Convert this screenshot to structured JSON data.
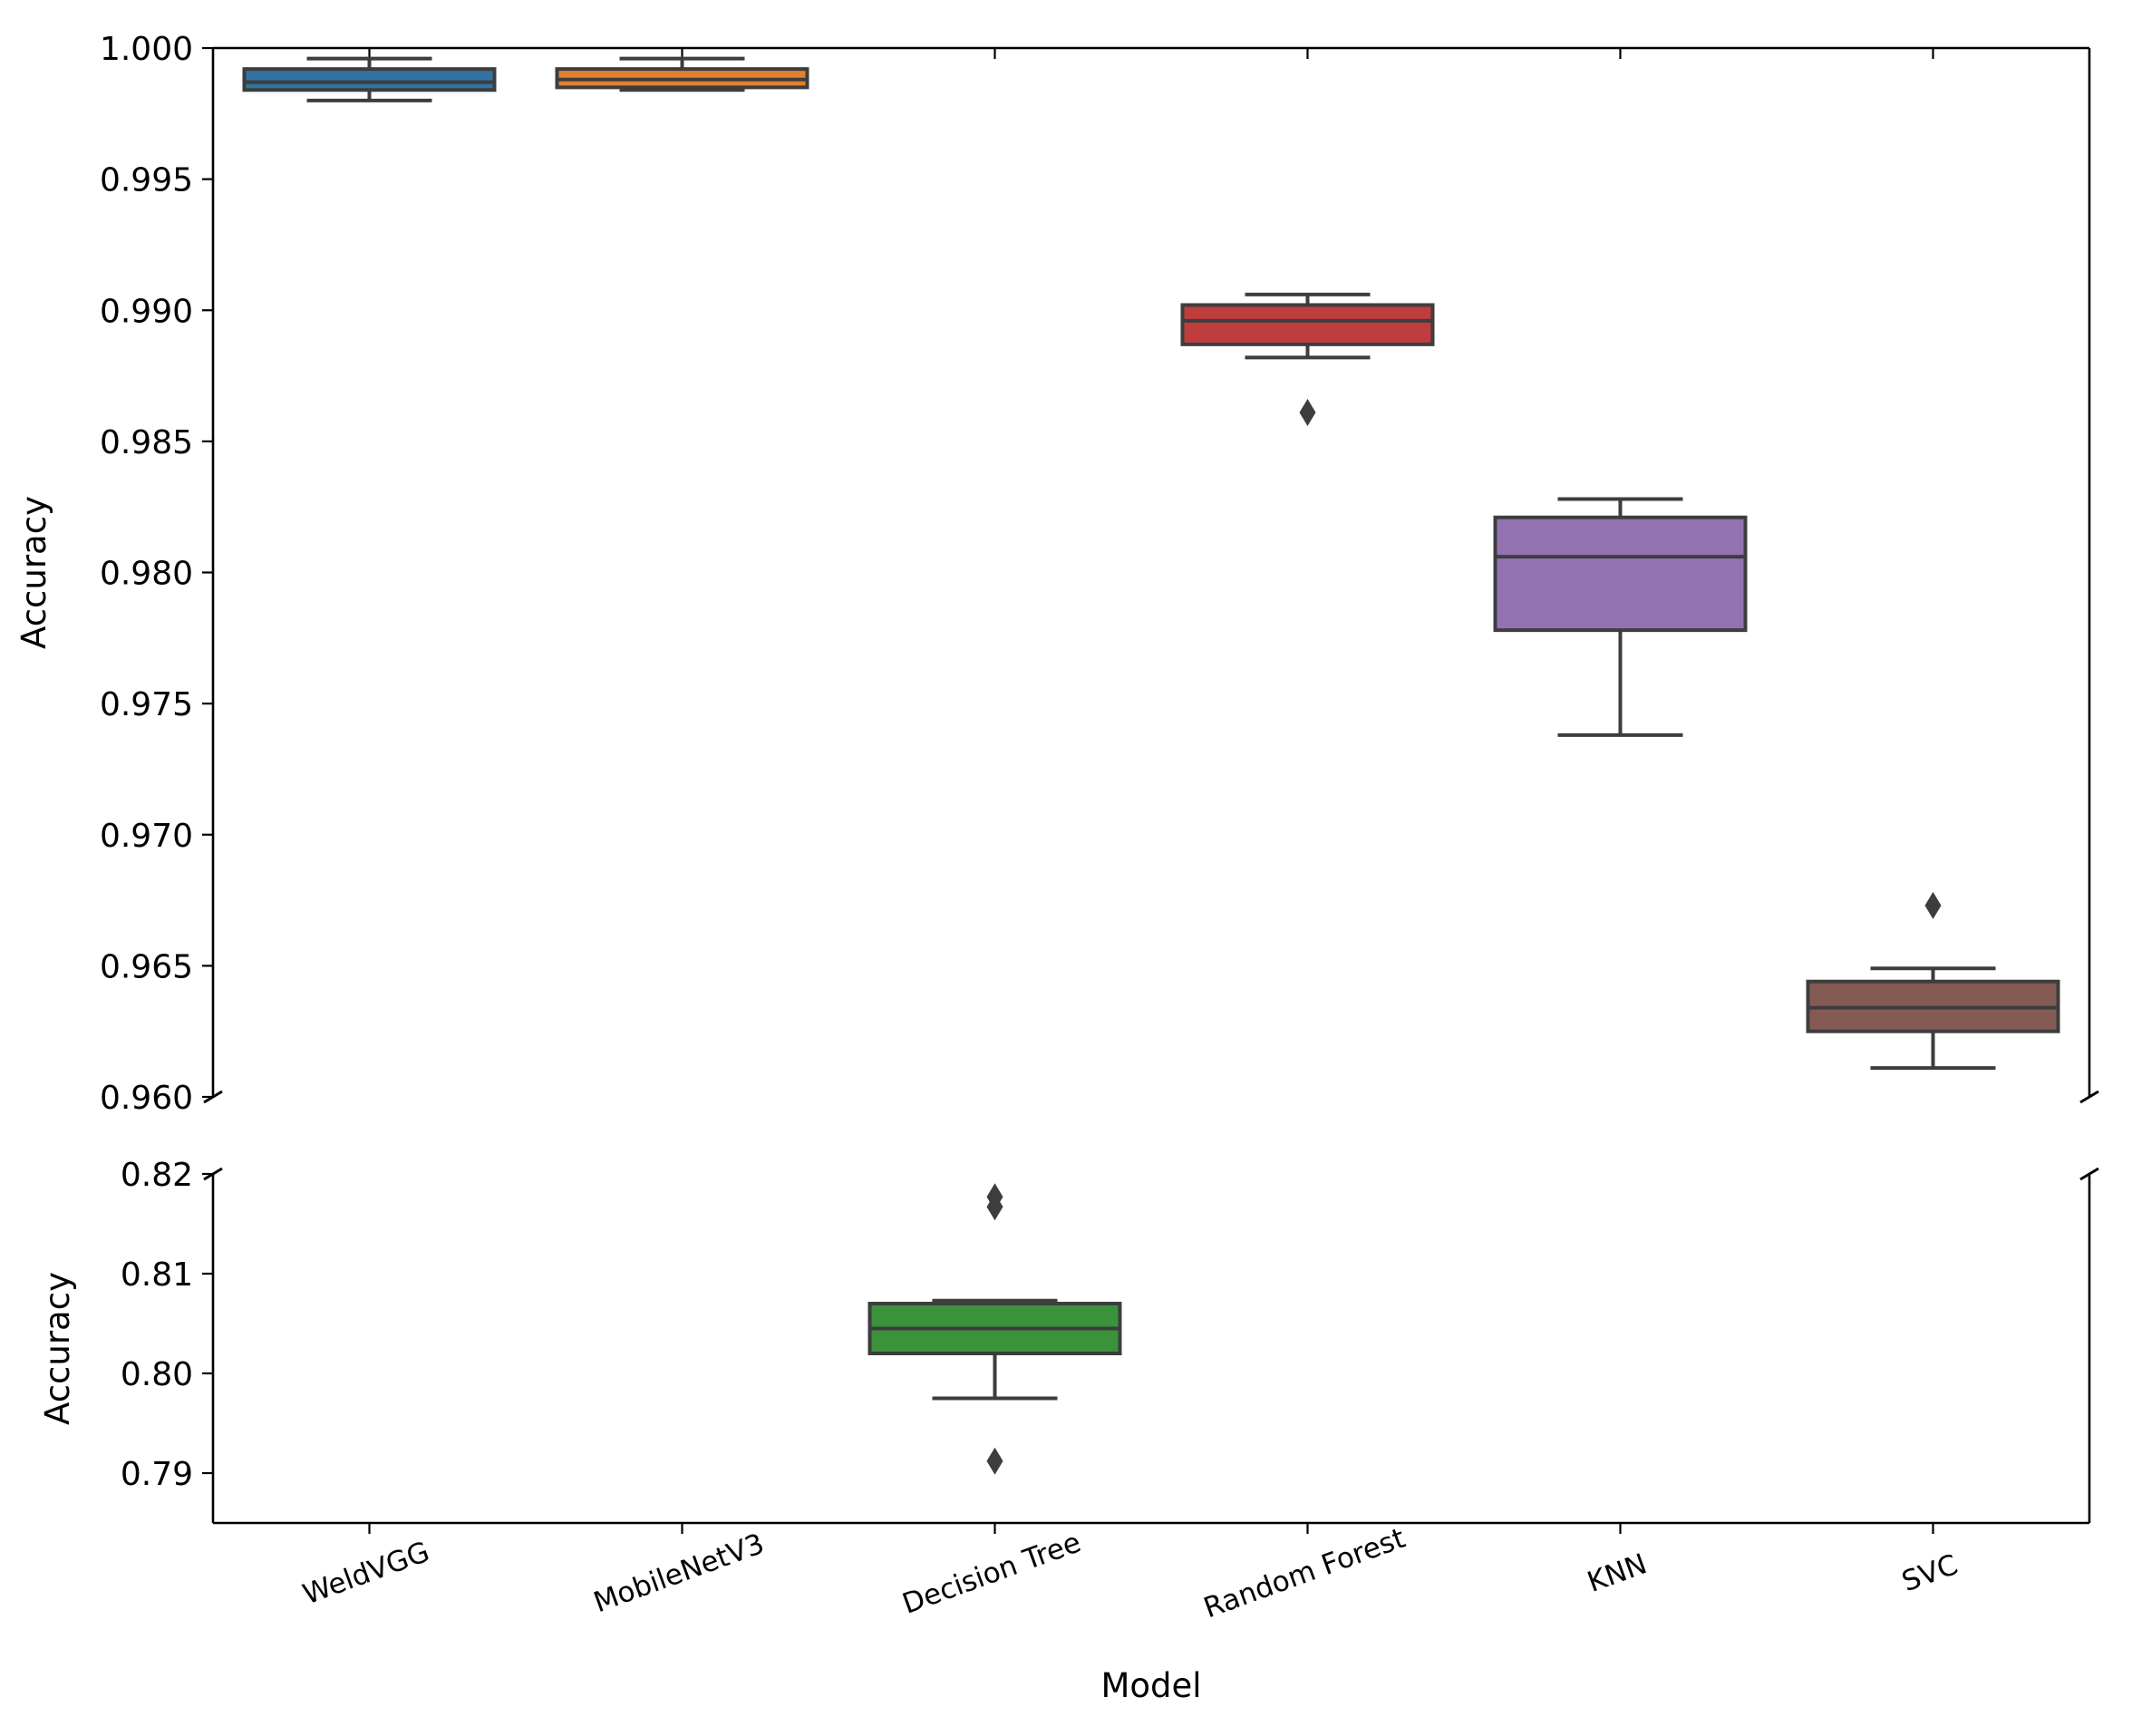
{
  "chart_data": {
    "type": "boxplot",
    "broken_axis": true,
    "categories": [
      "WeldVGG",
      "MobileNetV3",
      "Decision Tree",
      "Random Forest",
      "KNN",
      "SVC"
    ],
    "colors": [
      "#3274a1",
      "#e1812c",
      "#3a923a",
      "#c03d3e",
      "#9372b2",
      "#845b53"
    ],
    "edge_color": "#3d3d3d",
    "xlabel": "Model",
    "upper_axis": {
      "ylabel": "Accuracy",
      "ylim": [
        0.96,
        1.0
      ],
      "ticks": [
        0.96,
        0.965,
        0.97,
        0.975,
        0.98,
        0.985,
        0.99,
        0.995,
        1.0
      ],
      "tick_labels": [
        "0.960",
        "0.965",
        "0.970",
        "0.975",
        "0.980",
        "0.985",
        "0.990",
        "0.995",
        "1.000"
      ]
    },
    "lower_axis": {
      "ylabel": "Accuracy",
      "ylim": [
        0.785,
        0.82
      ],
      "ticks": [
        0.79,
        0.8,
        0.81,
        0.82
      ],
      "tick_labels": [
        "0.79",
        "0.80",
        "0.81",
        "0.82"
      ]
    },
    "boxes": [
      {
        "name": "WeldVGG",
        "axis": "upper",
        "whisker_low": 0.998,
        "q1": 0.9984,
        "median": 0.9987,
        "q3": 0.9992,
        "whisker_high": 0.9996,
        "outliers": []
      },
      {
        "name": "MobileNetV3",
        "axis": "upper",
        "whisker_low": 0.9984,
        "q1": 0.9985,
        "median": 0.9988,
        "q3": 0.9992,
        "whisker_high": 0.9996,
        "outliers": []
      },
      {
        "name": "Decision Tree",
        "axis": "lower",
        "whisker_low": 0.7975,
        "q1": 0.802,
        "median": 0.8045,
        "q3": 0.807,
        "whisker_high": 0.8073,
        "outliers": [
          0.7912,
          0.8167,
          0.8177
        ]
      },
      {
        "name": "Random Forest",
        "axis": "upper",
        "whisker_low": 0.9882,
        "q1": 0.9887,
        "median": 0.9896,
        "q3": 0.9902,
        "whisker_high": 0.9906,
        "outliers": [
          0.9861
        ]
      },
      {
        "name": "KNN",
        "axis": "upper",
        "whisker_low": 0.9738,
        "q1": 0.9778,
        "median": 0.9806,
        "q3": 0.9821,
        "whisker_high": 0.9828,
        "outliers": []
      },
      {
        "name": "SVC",
        "axis": "upper",
        "whisker_low": 0.9611,
        "q1": 0.9625,
        "median": 0.9634,
        "q3": 0.9644,
        "whisker_high": 0.9649,
        "outliers": [
          0.9673
        ]
      }
    ]
  }
}
